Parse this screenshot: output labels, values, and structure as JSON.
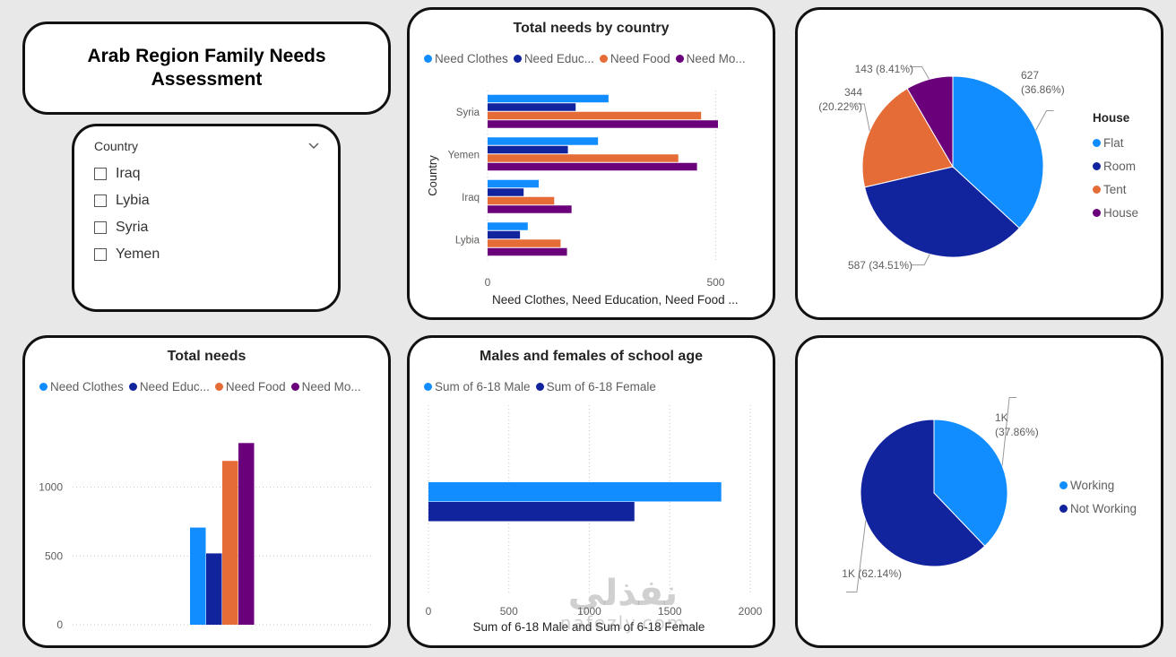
{
  "colors": {
    "blue": "#118DFF",
    "navy": "#12239E",
    "orange": "#E66C37",
    "purple": "#6B007B",
    "grid": "#c8c6c4",
    "axis_text": "#605e5c"
  },
  "title": "Arab Region Family Needs Assessment",
  "slicer": {
    "header": "Country",
    "icon": "chevron-down-icon",
    "items": [
      {
        "label": "Iraq"
      },
      {
        "label": "Lybia"
      },
      {
        "label": "Syria"
      },
      {
        "label": "Yemen"
      }
    ]
  },
  "needs_by_country": {
    "title": "Total needs by country",
    "legend": [
      "Need Clothes",
      "Need Educ...",
      "Need Food",
      "Need Mo..."
    ],
    "chart_data": {
      "type": "bar",
      "orientation": "horizontal",
      "title": "Total needs by country",
      "ylabel": "Country",
      "xlabel": "Need Clothes, Need Education, Need Food ...",
      "categories": [
        "Syria",
        "Yemen",
        "Iraq",
        "Lybia"
      ],
      "series": [
        {
          "name": "Need Clothes",
          "values": [
            265,
            242,
            112,
            88
          ]
        },
        {
          "name": "Need Education",
          "values": [
            193,
            176,
            79,
            71
          ]
        },
        {
          "name": "Need Food",
          "values": [
            468,
            418,
            146,
            160
          ]
        },
        {
          "name": "Need Money",
          "values": [
            505,
            459,
            184,
            174
          ]
        }
      ],
      "xlim": [
        0,
        560
      ],
      "xticks": [
        0,
        500
      ],
      "xtick_labels": [
        "0",
        "500"
      ]
    }
  },
  "house_pie": {
    "legend_title": "House",
    "legend": [
      "Flat",
      "Room",
      "Tent",
      "House"
    ],
    "labels": {
      "flat": [
        "627",
        "(36.86%)"
      ],
      "room": [
        "587 (34.51%)"
      ],
      "tent": [
        "344",
        "(20.22%)"
      ],
      "house": [
        "143 (8.41%)"
      ]
    },
    "chart_data": {
      "type": "pie",
      "categories": [
        "Flat",
        "Room",
        "Tent",
        "House"
      ],
      "values": [
        627,
        587,
        344,
        143
      ],
      "percentages": [
        36.86,
        34.51,
        20.22,
        8.41
      ],
      "legend_title": "House",
      "legend_position": "right"
    }
  },
  "total_needs": {
    "title": "Total needs",
    "legend": [
      "Need Clothes",
      "Need Educ...",
      "Need Food",
      "Need Mo..."
    ],
    "chart_data": {
      "type": "bar",
      "orientation": "vertical",
      "title": "Total needs",
      "series": [
        {
          "name": "Need Clothes",
          "values": [
            707
          ]
        },
        {
          "name": "Need Education",
          "values": [
            519
          ]
        },
        {
          "name": "Need Food",
          "values": [
            1192
          ]
        },
        {
          "name": "Need Money",
          "values": [
            1322
          ]
        }
      ],
      "ylim": [
        0,
        1500
      ],
      "yticks": [
        0,
        500,
        1000
      ],
      "ytick_labels": [
        "0",
        "500",
        "1000"
      ]
    }
  },
  "school_age": {
    "title": "Males and females of school age",
    "legend": [
      "Sum of 6-18 Male",
      "Sum of 6-18 Female"
    ],
    "chart_data": {
      "type": "bar",
      "orientation": "horizontal",
      "title": "Males and females of school age",
      "xlabel": "Sum of 6-18 Male and Sum of 6-18 Female",
      "series": [
        {
          "name": "Sum of 6-18 Male",
          "values": [
            1820
          ]
        },
        {
          "name": "Sum of 6-18 Female",
          "values": [
            1280
          ]
        }
      ],
      "xlim": [
        0,
        2000
      ],
      "xticks": [
        0,
        500,
        1000,
        1500,
        2000
      ],
      "xtick_labels": [
        "0",
        "500",
        "1000",
        "1500",
        "2000"
      ]
    }
  },
  "working_pie": {
    "legend": [
      "Working",
      "Not Working"
    ],
    "labels": {
      "working": [
        "1K",
        "(37.86%)"
      ],
      "not_working": [
        "1K (62.14%)"
      ]
    },
    "chart_data": {
      "type": "pie",
      "categories": [
        "Working",
        "Not Working"
      ],
      "percentages": [
        37.86,
        62.14
      ],
      "value_labels": [
        "1K",
        "1K"
      ],
      "legend_position": "right"
    }
  },
  "watermark": {
    "arabic": "نفذلي",
    "latin": "nafezly.com"
  }
}
